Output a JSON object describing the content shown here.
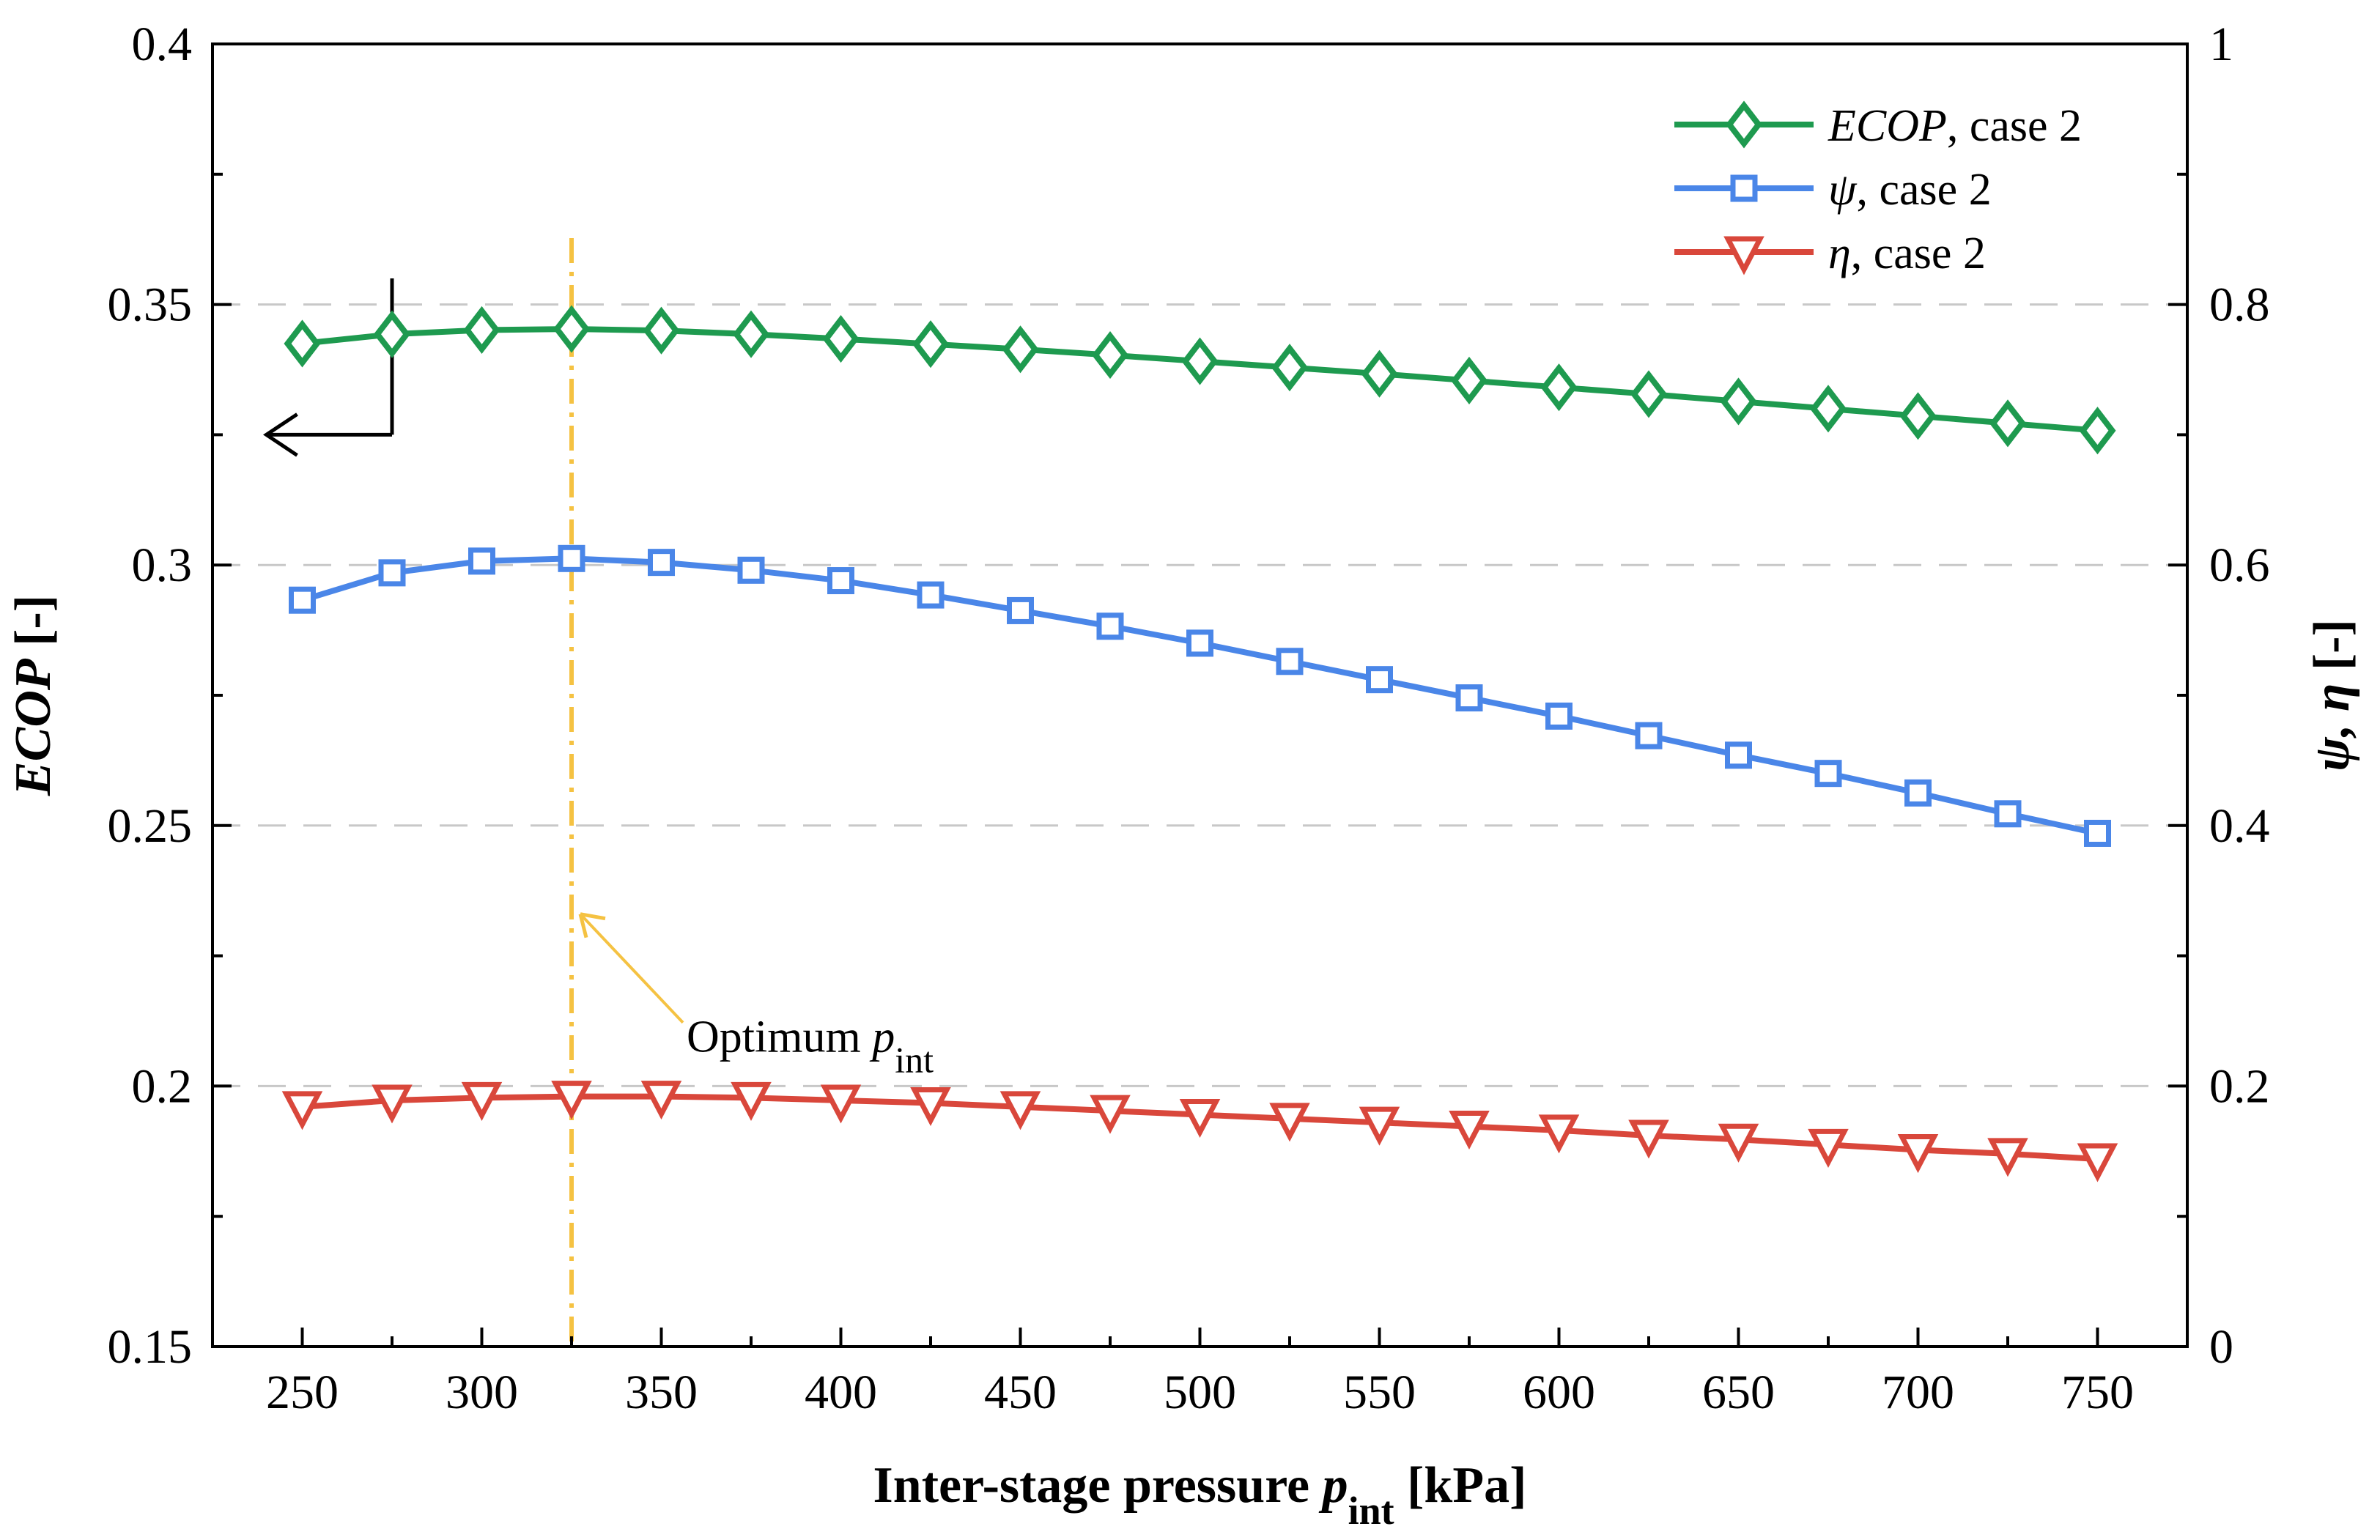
{
  "chart_data": {
    "type": "line",
    "xlabel": {
      "main": "Inter-stage pressure ",
      "var": "p",
      "sub": "int",
      "unit": " [kPa]"
    },
    "ylabel_left": {
      "var": "ECOP",
      "unit": " [-]"
    },
    "ylabel_right": {
      "var": "ψ, η",
      "unit": " [-]"
    },
    "xlim": [
      225,
      775
    ],
    "ylim_left": [
      0.15,
      0.4
    ],
    "ylim_right": [
      0,
      1
    ],
    "x_ticks": [
      250,
      300,
      350,
      400,
      450,
      500,
      550,
      600,
      650,
      700,
      750
    ],
    "x_tick_labels": [
      "250",
      "300",
      "350",
      "400",
      "450",
      "500",
      "550",
      "600",
      "650",
      "700",
      "750"
    ],
    "y_left_ticks": [
      0.15,
      0.2,
      0.25,
      0.3,
      0.35,
      0.4
    ],
    "y_left_tick_labels": [
      "0.15",
      "0.2",
      "0.25",
      "0.3",
      "0.35",
      "0.4"
    ],
    "y_right_ticks": [
      0,
      0.2,
      0.4,
      0.6,
      0.8,
      1
    ],
    "y_right_tick_labels": [
      "0",
      "0.2",
      "0.4",
      "0.6",
      "0.8",
      "1"
    ],
    "grid": "horizontal dashed at major ticks",
    "legend_position": "top-right",
    "x": [
      250,
      275,
      300,
      325,
      350,
      375,
      400,
      425,
      450,
      475,
      500,
      525,
      550,
      575,
      600,
      625,
      650,
      675,
      700,
      725,
      750
    ],
    "series": [
      {
        "name_var": "ECOP",
        "name_rest": ", case 2",
        "axis": "left",
        "marker": "diamond",
        "color": "#1e9a4f",
        "values": [
          0.3425,
          0.3443,
          0.3451,
          0.3453,
          0.345,
          0.3443,
          0.3434,
          0.3424,
          0.3414,
          0.3403,
          0.3391,
          0.3379,
          0.3367,
          0.3354,
          0.3341,
          0.3328,
          0.3314,
          0.33,
          0.3286,
          0.3272,
          0.3258
        ]
      },
      {
        "name_var": "ψ",
        "name_rest": ", case 2",
        "axis": "right",
        "marker": "square",
        "color": "#4a86e8",
        "values": [
          0.573,
          0.594,
          0.603,
          0.605,
          0.602,
          0.596,
          0.588,
          0.577,
          0.565,
          0.553,
          0.54,
          0.526,
          0.512,
          0.498,
          0.484,
          0.469,
          0.454,
          0.44,
          0.425,
          0.409,
          0.394
        ]
      },
      {
        "name_var": "η",
        "name_rest": ", case 2",
        "axis": "right",
        "marker": "triangle-down",
        "color": "#d9473b",
        "values": [
          0.184,
          0.189,
          0.191,
          0.192,
          0.192,
          0.191,
          0.189,
          0.187,
          0.184,
          0.181,
          0.178,
          0.175,
          0.172,
          0.169,
          0.166,
          0.162,
          0.159,
          0.155,
          0.151,
          0.148,
          0.144
        ]
      }
    ],
    "optimum_line": {
      "x": 325,
      "color": "#f5c242"
    },
    "annotation": {
      "text": "Optimum ",
      "var": "p",
      "sub": "int",
      "x": 355,
      "y_left": 0.215
    },
    "axis_arrow": {
      "direction": "left",
      "x_from": 275,
      "x_to": 240,
      "y_top": 0.355,
      "y": 0.325,
      "color": "#000000"
    }
  }
}
